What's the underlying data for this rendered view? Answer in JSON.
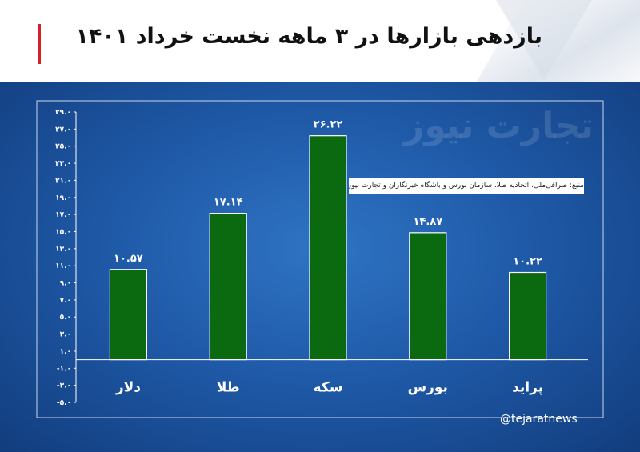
{
  "header": {
    "title": "بازدهی بازارها در ۳ ماهه نخست خرداد ۱۴۰۱"
  },
  "watermark": "تجارت نیوز",
  "source_note": "منبع: صرافی‌ملی، اتحادیه طلا، سازمان بورس و باشگاه خبرنگاران و تجارت نیوز",
  "handle": "@tejaratnews",
  "colors": {
    "bar": "#0b6a10",
    "accent": "#d4202a",
    "panel": "#1f5aa8"
  },
  "chart_data": {
    "type": "bar",
    "title": "بازدهی بازارها در ۳ ماهه نخست خرداد ۱۴۰۱",
    "categories": [
      "دلار",
      "طلا",
      "سکه",
      "بورس",
      "پراید"
    ],
    "values": [
      10.57,
      17.14,
      26.22,
      14.87,
      10.22
    ],
    "data_labels": [
      "۱۰.۵۷",
      "۱۷.۱۴",
      "۲۶.۲۲",
      "۱۴.۸۷",
      "۱۰.۲۲"
    ],
    "y_ticks": [
      29,
      27,
      25,
      23,
      21,
      19,
      17,
      15,
      13,
      11,
      9,
      7,
      5,
      3,
      1,
      -1,
      -3,
      -5
    ],
    "y_tick_labels": [
      "۲۹.۰",
      "۲۷.۰",
      "۲۵.۰",
      "۲۳.۰",
      "۲۱.۰",
      "۱۹.۰",
      "۱۷.۰",
      "۱۵.۰",
      "۱۳.۰",
      "۱۱.۰",
      "۹.۰",
      "۷.۰",
      "۵.۰",
      "۳.۰",
      "۱.۰",
      "-۱.۰",
      "-۳.۰",
      "-۵.۰"
    ],
    "ylim": [
      -5,
      29
    ],
    "grid": false,
    "xlabel": "",
    "ylabel": ""
  }
}
